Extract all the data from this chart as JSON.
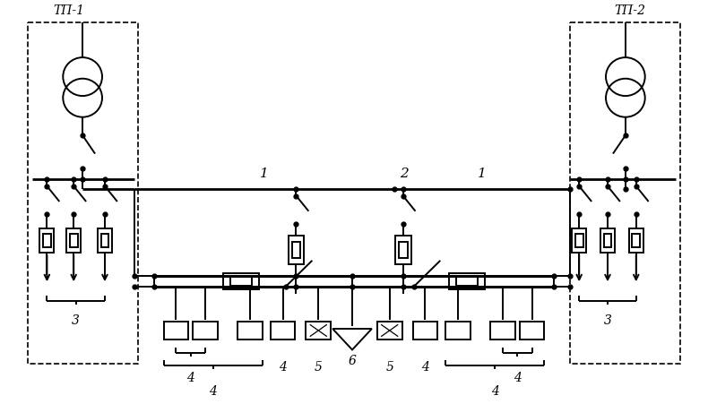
{
  "bg_color": "#ffffff",
  "lc": "#000000",
  "lw": 1.4,
  "tp1_label": "ТП-1",
  "tp2_label": "ТП-2",
  "label1a": "1",
  "label1b": "1",
  "label2": "2",
  "label3a": "3",
  "label3b": "3",
  "label4s": "4",
  "label5s": "5",
  "label6": "6"
}
